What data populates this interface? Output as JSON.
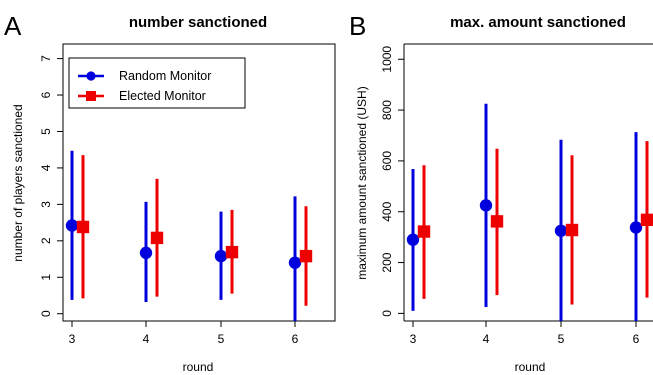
{
  "colors": {
    "random": "#0000dd",
    "elected": "#ee0000",
    "axis": "#000000"
  },
  "chart_data": [
    {
      "type": "scatter",
      "panel_letter": "A",
      "title": "number sanctioned",
      "xlabel": "round",
      "ylabel": "number of players sanctioned",
      "categories": [
        "3",
        "4",
        "5",
        "6"
      ],
      "yticks": [
        0,
        1,
        2,
        3,
        4,
        5,
        6,
        7
      ],
      "ylim": [
        -0.2,
        7.4
      ],
      "legend": {
        "placement": "top-left",
        "entries": [
          "Random Monitor",
          "Elected Monitor"
        ]
      },
      "series": [
        {
          "name": "Random Monitor",
          "marker": "circle",
          "color": "#0000dd",
          "values": [
            2.42,
            1.67,
            1.58,
            1.4
          ],
          "lower": [
            0.38,
            0.32,
            0.38,
            -0.25
          ],
          "upper": [
            4.47,
            3.07,
            2.8,
            3.22
          ]
        },
        {
          "name": "Elected Monitor",
          "marker": "square",
          "color": "#ee0000",
          "values": [
            2.38,
            2.08,
            1.69,
            1.58
          ],
          "lower": [
            0.42,
            0.47,
            0.55,
            0.22
          ],
          "upper": [
            4.35,
            3.7,
            2.85,
            2.95
          ]
        }
      ]
    },
    {
      "type": "scatter",
      "panel_letter": "B",
      "title": "max. amount sanctioned",
      "xlabel": "round",
      "ylabel": "maximum amount sanctioned (USH)",
      "categories": [
        "3",
        "4",
        "5",
        "6"
      ],
      "yticks": [
        0,
        200,
        400,
        600,
        800,
        1000
      ],
      "ylim": [
        -30,
        1060
      ],
      "legend": null,
      "series": [
        {
          "name": "Random Monitor",
          "marker": "circle",
          "color": "#0000dd",
          "values": [
            290,
            425,
            325,
            338
          ],
          "lower": [
            10,
            25,
            -40,
            -40
          ],
          "upper": [
            568,
            825,
            683,
            713
          ]
        },
        {
          "name": "Elected Monitor",
          "marker": "square",
          "color": "#ee0000",
          "values": [
            322,
            362,
            328,
            368
          ],
          "lower": [
            57,
            72,
            35,
            62
          ],
          "upper": [
            583,
            648,
            622,
            678
          ]
        }
      ]
    }
  ]
}
